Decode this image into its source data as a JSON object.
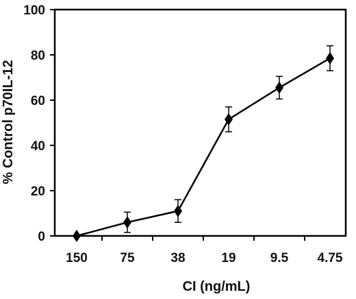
{
  "chart_data": {
    "type": "line",
    "title": "",
    "xlabel": "CI (ng/mL)",
    "ylabel": "% Control p70IL-12",
    "categories": [
      "150",
      "75",
      "38",
      "19",
      "9.5",
      "4.75"
    ],
    "series": [
      {
        "values": [
          0,
          6,
          11,
          51.5,
          65.5,
          78.5
        ],
        "error": [
          0,
          4.5,
          5,
          5.5,
          5,
          5.5
        ]
      }
    ],
    "ylim": [
      0,
      100
    ],
    "yticks": [
      0,
      20,
      40,
      60,
      80,
      100
    ],
    "grid": false,
    "marker": "diamond",
    "colors": {
      "line": "#000000",
      "marker": "#000000"
    }
  }
}
